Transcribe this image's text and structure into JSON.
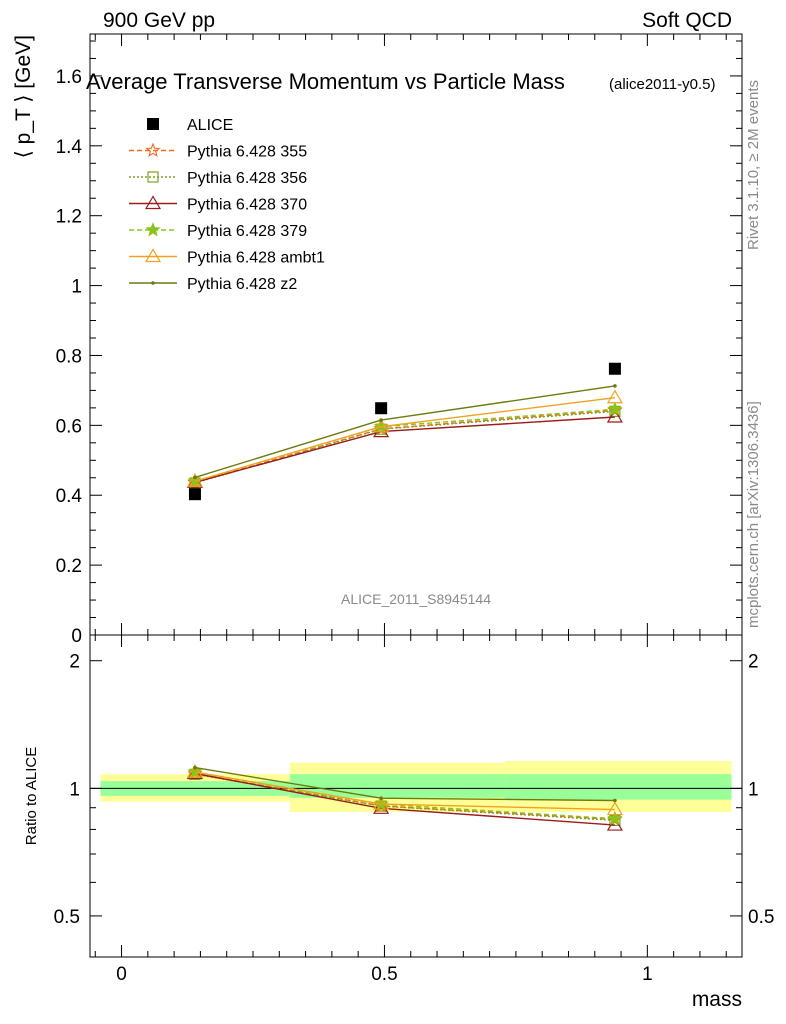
{
  "header": {
    "left": "900 GeV pp",
    "right": "Soft QCD"
  },
  "side_text": {
    "rivet": "Rivet 3.1.10, ≥ 2M events",
    "mcplots": "mcplots.cern.ch [arXiv:1306.3436]"
  },
  "chart_data": [
    {
      "type": "line",
      "title": "Average Transverse Momentum vs Particle Mass",
      "title_tag": "(alice2011-y0.5)",
      "ylabel": "⟨ p_T ⟩ [GeV]",
      "watermark": "ALICE_2011_S8945144",
      "xlim": [
        -0.06,
        1.18
      ],
      "ylim": [
        0,
        1.72
      ],
      "yticks": [
        "0",
        "0.2",
        "0.4",
        "0.6",
        "0.8",
        "1",
        "1.2",
        "1.4",
        "1.6"
      ],
      "x": [
        0.1396,
        0.4937,
        0.9383
      ],
      "data": {
        "name": "ALICE",
        "values": [
          0.403,
          0.649,
          0.762
        ],
        "xerr": [
          [
            -0.04,
            0.32
          ],
          [
            0.32,
            0.73
          ],
          [
            0.73,
            1.16
          ]
        ]
      },
      "series": [
        {
          "name": "Pythia 6.428 355",
          "values": [
            0.436,
            0.59,
            0.643
          ],
          "color": "#f06a1e",
          "dash": "5,3",
          "marker": "star-open"
        },
        {
          "name": "Pythia 6.428 356",
          "values": [
            0.435,
            0.589,
            0.64
          ],
          "color": "#7fa21f",
          "dash": "2,2",
          "marker": "square-open"
        },
        {
          "name": "Pythia 6.428 370",
          "values": [
            0.437,
            0.582,
            0.624
          ],
          "color": "#9b1b1b",
          "dash": "",
          "marker": "triangle-open"
        },
        {
          "name": "Pythia 6.428 379",
          "values": [
            0.44,
            0.596,
            0.646
          ],
          "color": "#8cc31a",
          "dash": "5,3",
          "marker": "star-filled"
        },
        {
          "name": "Pythia 6.428 ambt1",
          "values": [
            0.44,
            0.596,
            0.679
          ],
          "color": "#f0a21e",
          "dash": "",
          "marker": "triangle-open"
        },
        {
          "name": "Pythia 6.428 z2",
          "values": [
            0.451,
            0.615,
            0.713
          ],
          "color": "#6f7a0e",
          "dash": "",
          "marker": "dot"
        }
      ]
    },
    {
      "type": "line",
      "ylabel": "Ratio to ALICE",
      "xlabel": "mass",
      "xlim": [
        -0.06,
        1.18
      ],
      "ylim": [
        0.4,
        2.3
      ],
      "log_y": true,
      "yticks": [
        "0.5",
        "1",
        "2"
      ],
      "xticks": [
        "0",
        "0.5",
        "1"
      ],
      "bands": [
        {
          "x": [
            -0.04,
            0.32
          ],
          "yellow": [
            0.93,
            1.08
          ],
          "green": [
            0.96,
            1.04
          ]
        },
        {
          "x": [
            0.32,
            0.73
          ],
          "yellow": [
            0.88,
            1.15
          ],
          "green": [
            0.95,
            1.08
          ]
        },
        {
          "x": [
            0.73,
            1.16
          ],
          "yellow": [
            0.88,
            1.16
          ],
          "green": [
            0.94,
            1.08
          ]
        }
      ],
      "series": [
        {
          "name": "Pythia 6.428 355",
          "values": [
            1.082,
            0.909,
            0.844
          ]
        },
        {
          "name": "Pythia 6.428 356",
          "values": [
            1.079,
            0.908,
            0.84
          ]
        },
        {
          "name": "Pythia 6.428 370",
          "values": [
            1.084,
            0.897,
            0.819
          ]
        },
        {
          "name": "Pythia 6.428 379",
          "values": [
            1.092,
            0.918,
            0.848
          ]
        },
        {
          "name": "Pythia 6.428 ambt1",
          "values": [
            1.092,
            0.918,
            0.891
          ]
        },
        {
          "name": "Pythia 6.428 z2",
          "values": [
            1.119,
            0.948,
            0.936
          ]
        }
      ]
    }
  ]
}
